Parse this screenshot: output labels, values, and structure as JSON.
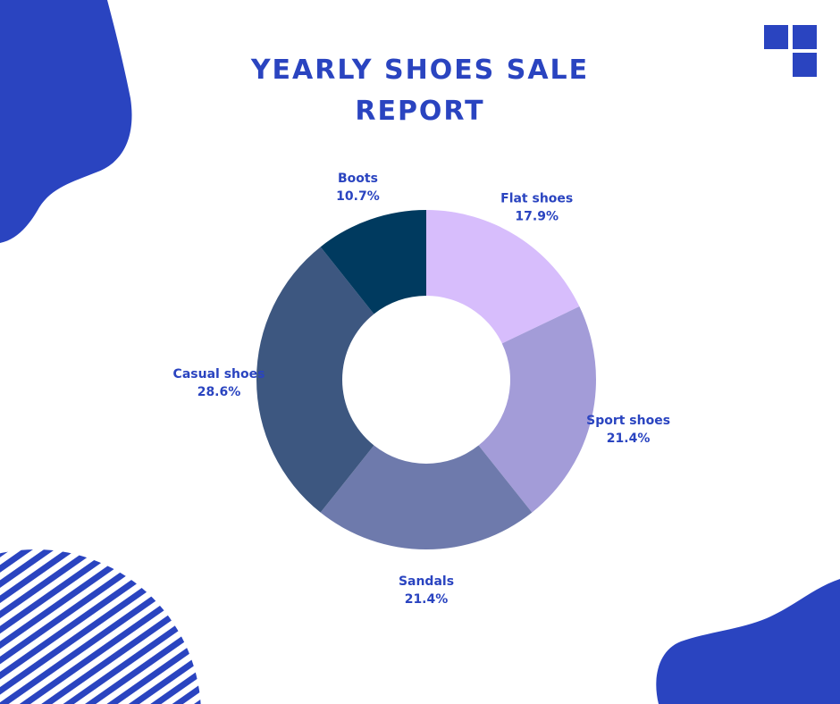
{
  "title_lines": [
    "YEARLY SHOES SALE",
    "REPORT"
  ],
  "colors": {
    "accent": "#2a44c0",
    "background": "#ffffff"
  },
  "chart_data": {
    "type": "pie",
    "donut": true,
    "title": "YEARLY SHOES SALE REPORT",
    "categories": [
      "Flat shoes",
      "Sport shoes",
      "Sandals",
      "Casual shoes",
      "Boots"
    ],
    "values": [
      17.9,
      21.4,
      21.4,
      28.6,
      10.7
    ],
    "value_labels": [
      "17.9%",
      "21.4%",
      "21.4%",
      "28.6%",
      "10.7%"
    ],
    "colors": [
      "#d7bdfc",
      "#a39cd8",
      "#6e7aac",
      "#3d5780",
      "#003a5f"
    ],
    "legend": "none"
  }
}
